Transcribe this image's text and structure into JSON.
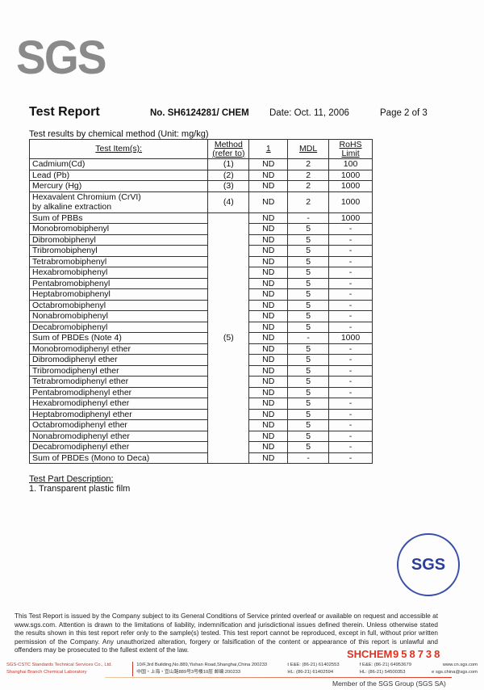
{
  "logo": "SGS",
  "header": {
    "title": "Test Report",
    "report_no": "No. SH6124281/ CHEM",
    "date": "Date: Oct. 11, 2006",
    "page": "Page 2 of 3"
  },
  "caption": "Test results by chemical method (Unit: mg/kg)",
  "table": {
    "headers": {
      "item": "Test Item(s):",
      "method_1": "Method",
      "method_2": "(refer to)",
      "sample": "1",
      "mdl": "MDL",
      "limit_1": "RoHS",
      "limit_2": "Limit"
    },
    "rows": [
      {
        "item": "Cadmium(Cd)",
        "method": "(1)",
        "result": "ND",
        "mdl": "2",
        "limit": "100"
      },
      {
        "item": "Lead (Pb)",
        "method": "(2)",
        "result": "ND",
        "mdl": "2",
        "limit": "1000"
      },
      {
        "item": "Mercury (Hg)",
        "method": "(3)",
        "result": "ND",
        "mdl": "2",
        "limit": "1000"
      },
      {
        "item": "Hexavalent Chromium (CrVI)",
        "item2": "by alkaline extraction",
        "method": "(4)",
        "result": "ND",
        "mdl": "2",
        "limit": "1000"
      }
    ],
    "group_method": "(5)",
    "group_rows": [
      {
        "item": "Sum of PBBs",
        "result": "ND",
        "mdl": "-",
        "limit": "1000"
      },
      {
        "item": "Monobromobiphenyl",
        "result": "ND",
        "mdl": "5",
        "limit": "-"
      },
      {
        "item": "Dibromobiphenyl",
        "result": "ND",
        "mdl": "5",
        "limit": "-"
      },
      {
        "item": "Tribromobiphenyl",
        "result": "ND",
        "mdl": "5",
        "limit": "-"
      },
      {
        "item": "Tetrabromobiphenyl",
        "result": "ND",
        "mdl": "5",
        "limit": "-"
      },
      {
        "item": "Hexabromobiphenyl",
        "result": "ND",
        "mdl": "5",
        "limit": "-"
      },
      {
        "item": "Pentabromobiphenyl",
        "result": "ND",
        "mdl": "5",
        "limit": "-"
      },
      {
        "item": "Heptabromobiphenyl",
        "result": "ND",
        "mdl": "5",
        "limit": "-"
      },
      {
        "item": "Octabromobiphenyl",
        "result": "ND",
        "mdl": "5",
        "limit": "-"
      },
      {
        "item": "Nonabromobiphenyl",
        "result": "ND",
        "mdl": "5",
        "limit": "-"
      },
      {
        "item": "Decabromobiphenyl",
        "result": "ND",
        "mdl": "5",
        "limit": "-"
      },
      {
        "item": "Sum of PBDEs (Note 4)",
        "result": "ND",
        "mdl": "-",
        "limit": "1000"
      },
      {
        "item": "Monobromodiphenyl ether",
        "result": "ND",
        "mdl": "5",
        "limit": "-"
      },
      {
        "item": "Dibromodiphenyl ether",
        "result": "ND",
        "mdl": "5",
        "limit": "-"
      },
      {
        "item": "Tribromodiphenyl ether",
        "result": "ND",
        "mdl": "5",
        "limit": "-"
      },
      {
        "item": "Tetrabromodiphenyl ether",
        "result": "ND",
        "mdl": "5",
        "limit": "-"
      },
      {
        "item": "Pentabromodiphenyl ether",
        "result": "ND",
        "mdl": "5",
        "limit": "-"
      },
      {
        "item": "Hexabromodiphenyl ether",
        "result": "ND",
        "mdl": "5",
        "limit": "-"
      },
      {
        "item": "Heptabromodiphenyl ether",
        "result": "ND",
        "mdl": "5",
        "limit": "-"
      },
      {
        "item": "Octabromodiphenyl ether",
        "result": "ND",
        "mdl": "5",
        "limit": "-"
      },
      {
        "item": "Nonabromodiphenyl ether",
        "result": "ND",
        "mdl": "5",
        "limit": "-"
      },
      {
        "item": "Decabromodiphenyl ether",
        "result": "ND",
        "mdl": "5",
        "limit": "-"
      },
      {
        "item": "Sum of PBDEs (Mono to Deca)",
        "result": "ND",
        "mdl": "-",
        "limit": "-"
      }
    ]
  },
  "part": {
    "label": "Test Part Description:",
    "item": "1. Transparent plastic film"
  },
  "footer": {
    "disclaimer": "This Test Report is issued by the Company subject to its General Conditions of Service printed overleaf or available on request and accessible at www.sgs.com. Attention is drawn to the limitations of liability, indemnification and jurisdictional issues defined therein. Unless otherwise stated the results shown in this test report refer only to the sample(s) tested. This test report cannot be reproduced, except in full, without prior written permission of the Company. Any unauthorized alteration, forgery or falsification of the content or appearance of this report is unlawful and offenders may be prosecuted to the fullest extent of the law.",
    "stamp": "SGS",
    "code": "SHCHEM",
    "serial": "958738",
    "company_1": "SGS-CSTC Standards Technical Services Co., Ltd.",
    "company_2": "Shanghai Branch Chemical Laboratory",
    "address_1": "10/F,3rd Building,No.889,Yishan Road,Shanghai,China  200233",
    "address_2": "中国・上海・宜山路889号3号楼10层    邮编:200233",
    "tel_a1": "t E&E: (86-21) 61402553",
    "tel_a2": "HL: (86-21) 61402594",
    "tel_b1": "f E&E: (86-21) 64953679",
    "tel_b2": "HL: (86-21) 54500353",
    "web": "www.cn.sgs.com",
    "email": "e sgs.china@sgs.com",
    "member": "Member of the SGS Group (SGS SA)"
  }
}
